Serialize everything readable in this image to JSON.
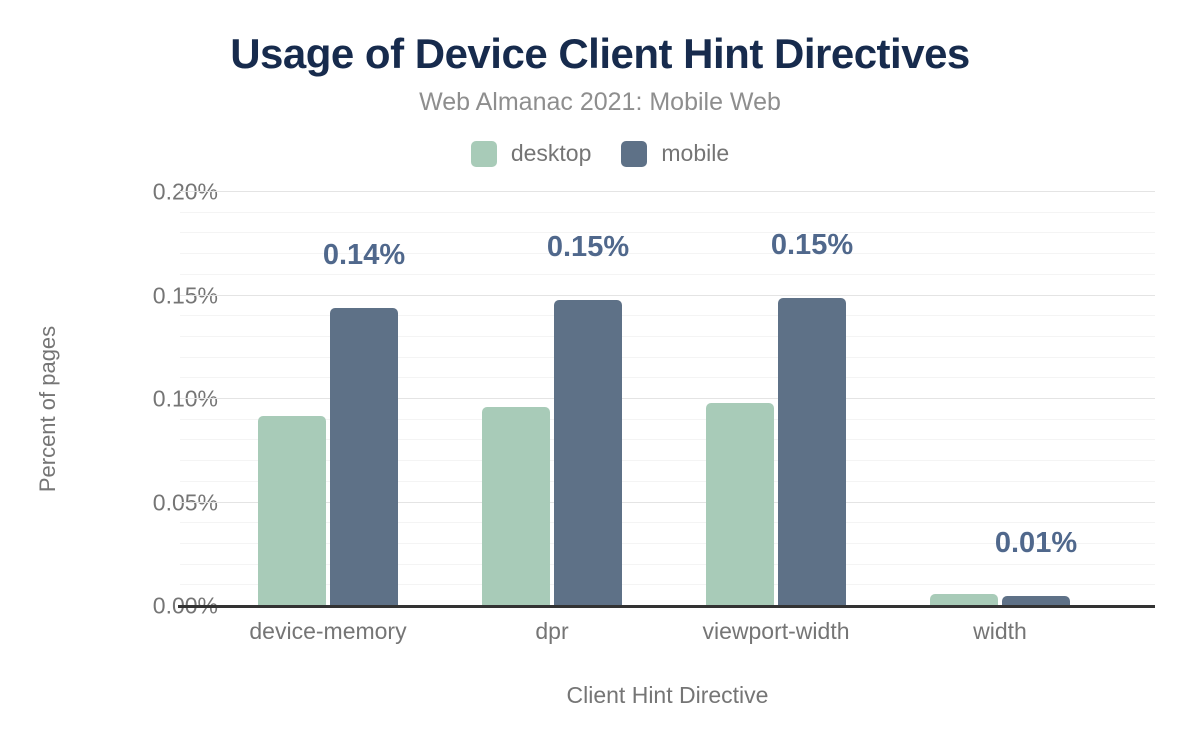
{
  "header": {
    "title": "Usage of Device Client Hint Directives",
    "subtitle": "Web Almanac 2021: Mobile Web"
  },
  "chart_data": {
    "type": "bar",
    "title": "Usage of Device Client Hint Directives",
    "subtitle": "Web Almanac 2021: Mobile Web",
    "categories": [
      "device-memory",
      "dpr",
      "viewport-width",
      "width"
    ],
    "series": [
      {
        "name": "desktop",
        "color": "#a8cbb8",
        "values": [
          0.092,
          0.096,
          0.098,
          0.006
        ]
      },
      {
        "name": "mobile",
        "color": "#5e7187",
        "values": [
          0.144,
          0.148,
          0.149,
          0.005
        ],
        "labels": [
          "0.14%",
          "0.15%",
          "0.15%",
          "0.01%"
        ]
      }
    ],
    "value_label_color": "#50688c",
    "xlabel": "Client Hint Directive",
    "ylabel": "Percent of pages",
    "ylim": [
      0,
      0.2
    ],
    "yticks": [
      {
        "value": 0.0,
        "label": "0.00%"
      },
      {
        "value": 0.05,
        "label": "0.05%"
      },
      {
        "value": 0.1,
        "label": "0.10%"
      },
      {
        "value": 0.15,
        "label": "0.15%"
      },
      {
        "value": 0.2,
        "label": "0.20%"
      }
    ],
    "ytick_step": 0.05,
    "minor_gridline_step": 0.01,
    "grid": "major+minor",
    "legend_position": "top",
    "title_color": "#172b4d",
    "axis_line_color": "#333333"
  }
}
